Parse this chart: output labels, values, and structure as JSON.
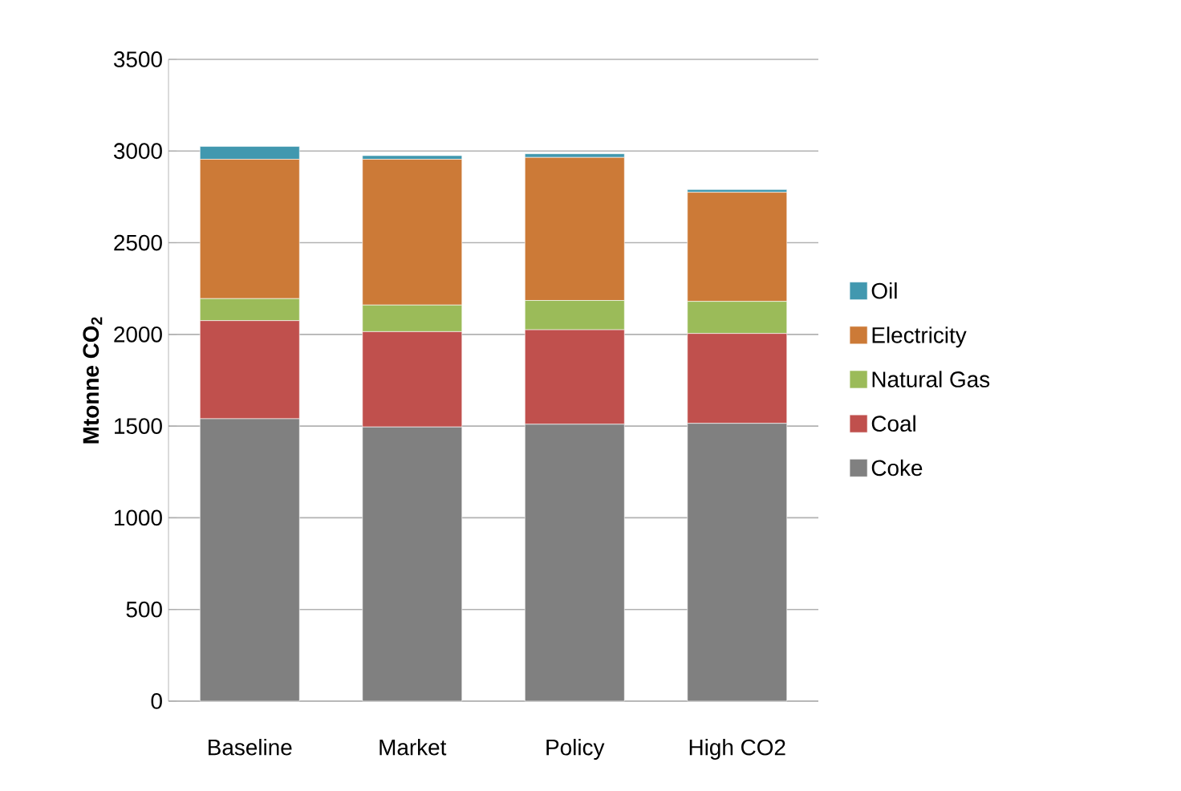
{
  "chart_data": {
    "type": "bar",
    "stacked": true,
    "ylabel": "Mtonne CO$_{2}$",
    "categories": [
      "Baseline",
      "Market",
      "Policy",
      "High CO2"
    ],
    "series": [
      {
        "name": "Coke",
        "color": "#808080",
        "values": [
          1540,
          1495,
          1510,
          1515
        ]
      },
      {
        "name": "Coal",
        "color": "#c0504d",
        "values": [
          535,
          520,
          515,
          490
        ]
      },
      {
        "name": "Natural Gas",
        "color": "#9bbb59",
        "values": [
          120,
          145,
          160,
          175
        ]
      },
      {
        "name": "Electricity",
        "color": "#cc7a37",
        "values": [
          760,
          795,
          780,
          595
        ]
      },
      {
        "name": "Oil",
        "color": "#4198af",
        "values": [
          70,
          20,
          20,
          15
        ]
      }
    ],
    "ylim": [
      0,
      3500
    ],
    "yticks": [
      0,
      500,
      1000,
      1500,
      2000,
      2500,
      3000,
      3500
    ],
    "grid": "y",
    "legend": "right"
  }
}
